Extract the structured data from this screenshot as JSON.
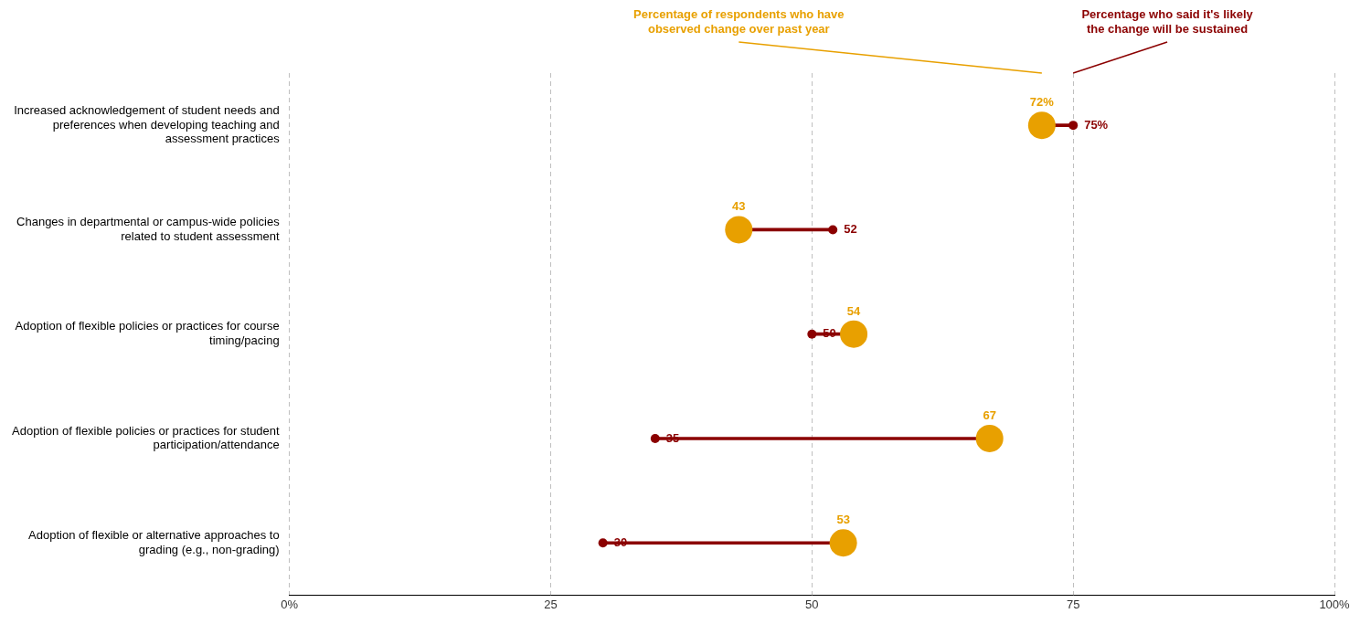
{
  "chart_data": {
    "type": "dumbbell",
    "orientation": "horizontal",
    "categories": [
      "Increased acknowledgement of student needs and\npreferences when developing teaching and\nassessment practices",
      "Changes in departmental or campus-wide policies\nrelated to student assessment",
      "Adoption of flexible policies or practices for course\ntiming/pacing",
      "Adoption of flexible policies or practices for student\nparticipation/attendance",
      "Adoption of flexible or alternative approaches to\ngrading (e.g., non-grading)"
    ],
    "series": [
      {
        "name": "Percentage of respondents who have\nobserved change over past year",
        "color": "#E8A000",
        "values": [
          72,
          43,
          54,
          67,
          53
        ],
        "value_labels": [
          "72%",
          "43",
          "54",
          "67",
          "53"
        ]
      },
      {
        "name": "Percentage who said it's likely\nthe change will be sustained",
        "color": "#8B0000",
        "values": [
          75,
          52,
          50,
          35,
          30
        ],
        "value_labels": [
          "75%",
          "52",
          "50",
          "35",
          "30"
        ]
      }
    ],
    "xlim": [
      0,
      100
    ],
    "xticks": [
      {
        "value": 0,
        "label": "0%"
      },
      25,
      50,
      75,
      {
        "value": 100,
        "label": "100%"
      }
    ],
    "grid": true,
    "data_labels": true
  }
}
